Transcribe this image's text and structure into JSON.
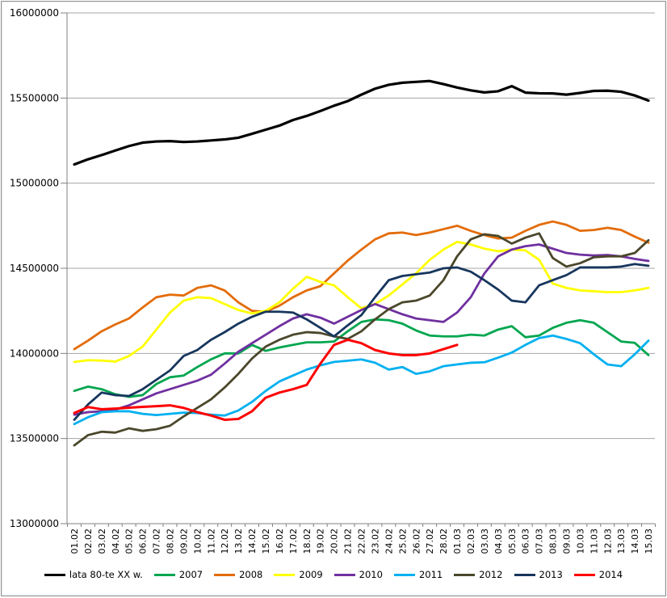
{
  "chart_data": {
    "type": "line",
    "title": "",
    "xlabel": "",
    "ylabel": "",
    "grid": true,
    "legend_position": "bottom",
    "x_labels": [
      "01.02",
      "02.02",
      "03.02",
      "04.02",
      "05.02",
      "06.02",
      "07.02",
      "08.02",
      "09.02",
      "10.02",
      "11.02",
      "12.02",
      "13.02",
      "14.02",
      "15.02",
      "16.02",
      "17.02",
      "18.02",
      "19.02",
      "20.02",
      "21.02",
      "22.02",
      "23.02",
      "24.02",
      "25.02",
      "26.02",
      "27.02",
      "28.02",
      "01.03",
      "02.03",
      "03.03",
      "04.03",
      "05.03",
      "06.03",
      "07.03",
      "08.03",
      "09.03",
      "10.03",
      "11.03",
      "12.03",
      "13.03",
      "14.03",
      "15.03"
    ],
    "y_axis": {
      "min": 13000000,
      "max": 16000000,
      "step": 500000,
      "tick_labels": [
        "13000000",
        "13500000",
        "14000000",
        "14500000",
        "15000000",
        "15500000",
        "16000000"
      ]
    },
    "colors": {
      "grid": "#a6a6a6",
      "axis": "#808080",
      "text": "#000000"
    },
    "series": [
      {
        "name": "lata 80-te XX w.",
        "color": "#000000",
        "width": 3.2,
        "values": [
          15110000,
          15140000,
          15165000,
          15192000,
          15218000,
          15238000,
          15245000,
          15247000,
          15242000,
          15245000,
          15251000,
          15257000,
          15267000,
          15290000,
          15314000,
          15338000,
          15371000,
          15395000,
          15424000,
          15455000,
          15482000,
          15520000,
          15555000,
          15578000,
          15590000,
          15595000,
          15600000,
          15582000,
          15562000,
          15545000,
          15533000,
          15540000,
          15570000,
          15532000,
          15528000,
          15527000,
          15520000,
          15530000,
          15542000,
          15543000,
          15537000,
          15515000,
          15485000
        ]
      },
      {
        "name": "2007",
        "color": "#00A64F",
        "width": 2.8,
        "values": [
          13780000,
          13805000,
          13790000,
          13760000,
          13745000,
          13755000,
          13820000,
          13860000,
          13870000,
          13920000,
          13965000,
          14000000,
          14000000,
          14050000,
          14015000,
          14035000,
          14050000,
          14065000,
          14065000,
          14070000,
          14130000,
          14185000,
          14200000,
          14195000,
          14175000,
          14135000,
          14105000,
          14100000,
          14100000,
          14110000,
          14105000,
          14140000,
          14160000,
          14095000,
          14105000,
          14150000,
          14180000,
          14195000,
          14180000,
          14125000,
          14070000,
          14062000,
          13990000
        ]
      },
      {
        "name": "2008",
        "color": "#E36C0A",
        "width": 2.8,
        "values": [
          14025000,
          14075000,
          14130000,
          14170000,
          14205000,
          14270000,
          14330000,
          14345000,
          14340000,
          14385000,
          14400000,
          14370000,
          14300000,
          14250000,
          14245000,
          14280000,
          14330000,
          14370000,
          14395000,
          14470000,
          14545000,
          14610000,
          14670000,
          14705000,
          14710000,
          14695000,
          14710000,
          14730000,
          14750000,
          14720000,
          14695000,
          14675000,
          14680000,
          14720000,
          14755000,
          14775000,
          14755000,
          14720000,
          14725000,
          14738000,
          14725000,
          14686000,
          14650000
        ]
      },
      {
        "name": "2009",
        "color": "#FFFF00",
        "width": 2.8,
        "values": [
          13950000,
          13960000,
          13958000,
          13952000,
          13985000,
          14040000,
          14140000,
          14240000,
          14310000,
          14330000,
          14325000,
          14290000,
          14255000,
          14235000,
          14250000,
          14300000,
          14380000,
          14450000,
          14420000,
          14400000,
          14330000,
          14265000,
          14290000,
          14340000,
          14405000,
          14470000,
          14550000,
          14610000,
          14655000,
          14640000,
          14615000,
          14600000,
          14610000,
          14605000,
          14550000,
          14410000,
          14385000,
          14370000,
          14365000,
          14360000,
          14360000,
          14370000,
          14385000
        ]
      },
      {
        "name": "2010",
        "color": "#7030A0",
        "width": 2.8,
        "values": [
          13640000,
          13655000,
          13660000,
          13670000,
          13695000,
          13730000,
          13765000,
          13790000,
          13815000,
          13840000,
          13875000,
          13940000,
          14010000,
          14060000,
          14110000,
          14160000,
          14205000,
          14230000,
          14210000,
          14175000,
          14215000,
          14255000,
          14290000,
          14260000,
          14230000,
          14205000,
          14195000,
          14185000,
          14240000,
          14330000,
          14470000,
          14570000,
          14610000,
          14630000,
          14640000,
          14615000,
          14590000,
          14580000,
          14575000,
          14578000,
          14570000,
          14555000,
          14543000
        ]
      },
      {
        "name": "2011",
        "color": "#00B0F0",
        "width": 2.8,
        "values": [
          13585000,
          13625000,
          13655000,
          13660000,
          13660000,
          13645000,
          13638000,
          13645000,
          13652000,
          13650000,
          13640000,
          13635000,
          13665000,
          13715000,
          13780000,
          13835000,
          13870000,
          13905000,
          13930000,
          13950000,
          13957000,
          13965000,
          13945000,
          13905000,
          13920000,
          13880000,
          13895000,
          13925000,
          13935000,
          13945000,
          13948000,
          13975000,
          14005000,
          14050000,
          14090000,
          14105000,
          14085000,
          14060000,
          13995000,
          13935000,
          13925000,
          13995000,
          14075000
        ]
      },
      {
        "name": "2012",
        "color": "#4A472B",
        "width": 2.8,
        "values": [
          13460000,
          13520000,
          13540000,
          13535000,
          13560000,
          13545000,
          13555000,
          13575000,
          13630000,
          13680000,
          13730000,
          13800000,
          13880000,
          13970000,
          14040000,
          14080000,
          14110000,
          14125000,
          14120000,
          14100000,
          14085000,
          14130000,
          14200000,
          14260000,
          14300000,
          14310000,
          14340000,
          14430000,
          14570000,
          14670000,
          14700000,
          14690000,
          14645000,
          14680000,
          14705000,
          14560000,
          14510000,
          14530000,
          14565000,
          14570000,
          14570000,
          14590000,
          14665000
        ]
      },
      {
        "name": "2013",
        "color": "#17365D",
        "width": 2.8,
        "values": [
          13610000,
          13700000,
          13770000,
          13755000,
          13750000,
          13790000,
          13845000,
          13900000,
          13985000,
          14020000,
          14080000,
          14125000,
          14175000,
          14215000,
          14245000,
          14245000,
          14240000,
          14200000,
          14150000,
          14100000,
          14165000,
          14225000,
          14330000,
          14430000,
          14455000,
          14465000,
          14475000,
          14500000,
          14505000,
          14480000,
          14430000,
          14375000,
          14310000,
          14300000,
          14400000,
          14430000,
          14460000,
          14505000,
          14505000,
          14505000,
          14510000,
          14525000,
          14515000
        ]
      },
      {
        "name": "2014",
        "color": "#FF0000",
        "width": 3.0,
        "values": [
          13650000,
          13685000,
          13672000,
          13676000,
          13681000,
          13686000,
          13690000,
          13695000,
          13680000,
          13655000,
          13635000,
          13610000,
          13615000,
          13660000,
          13740000,
          13770000,
          13790000,
          13815000,
          13940000,
          14050000,
          14080000,
          14060000,
          14020000,
          14000000,
          13990000,
          13990000,
          14000000,
          14025000,
          14050000,
          null,
          null,
          null,
          null,
          null,
          null,
          null,
          null,
          null,
          null,
          null,
          null,
          null,
          null
        ]
      }
    ]
  }
}
